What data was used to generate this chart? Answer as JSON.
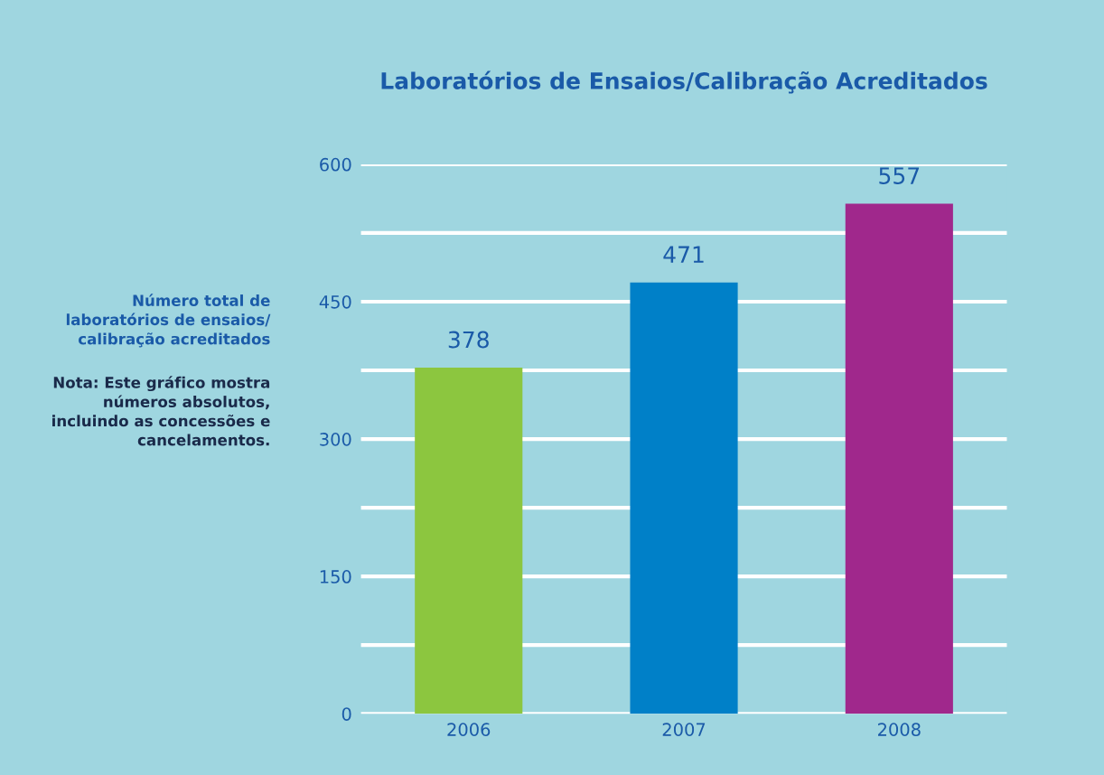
{
  "chart_data": {
    "type": "bar",
    "title": "Laboratórios de Ensaios/Calibração Acreditados",
    "categories": [
      "2006",
      "2007",
      "2008"
    ],
    "values": [
      378,
      471,
      557
    ],
    "colors": [
      "#8cc63f",
      "#0080c8",
      "#a0288c"
    ],
    "data_labels": true,
    "ylim": [
      0,
      600
    ],
    "yticks": [
      0,
      {
        "value": 75,
        "label": null
      },
      150,
      {
        "value": 225,
        "label": null
      },
      300,
      {
        "value": 375,
        "label": null
      },
      450,
      {
        "value": 525,
        "label": null
      },
      600
    ],
    "grid": "y",
    "annotations": [
      "Número total de\nlaboratórios de ensaios/\ncalibração acreditados",
      "Nota: Este gráfico mostra\nnúmeros absolutos,\nincluindo as concessões e\ncancelamentos."
    ]
  }
}
